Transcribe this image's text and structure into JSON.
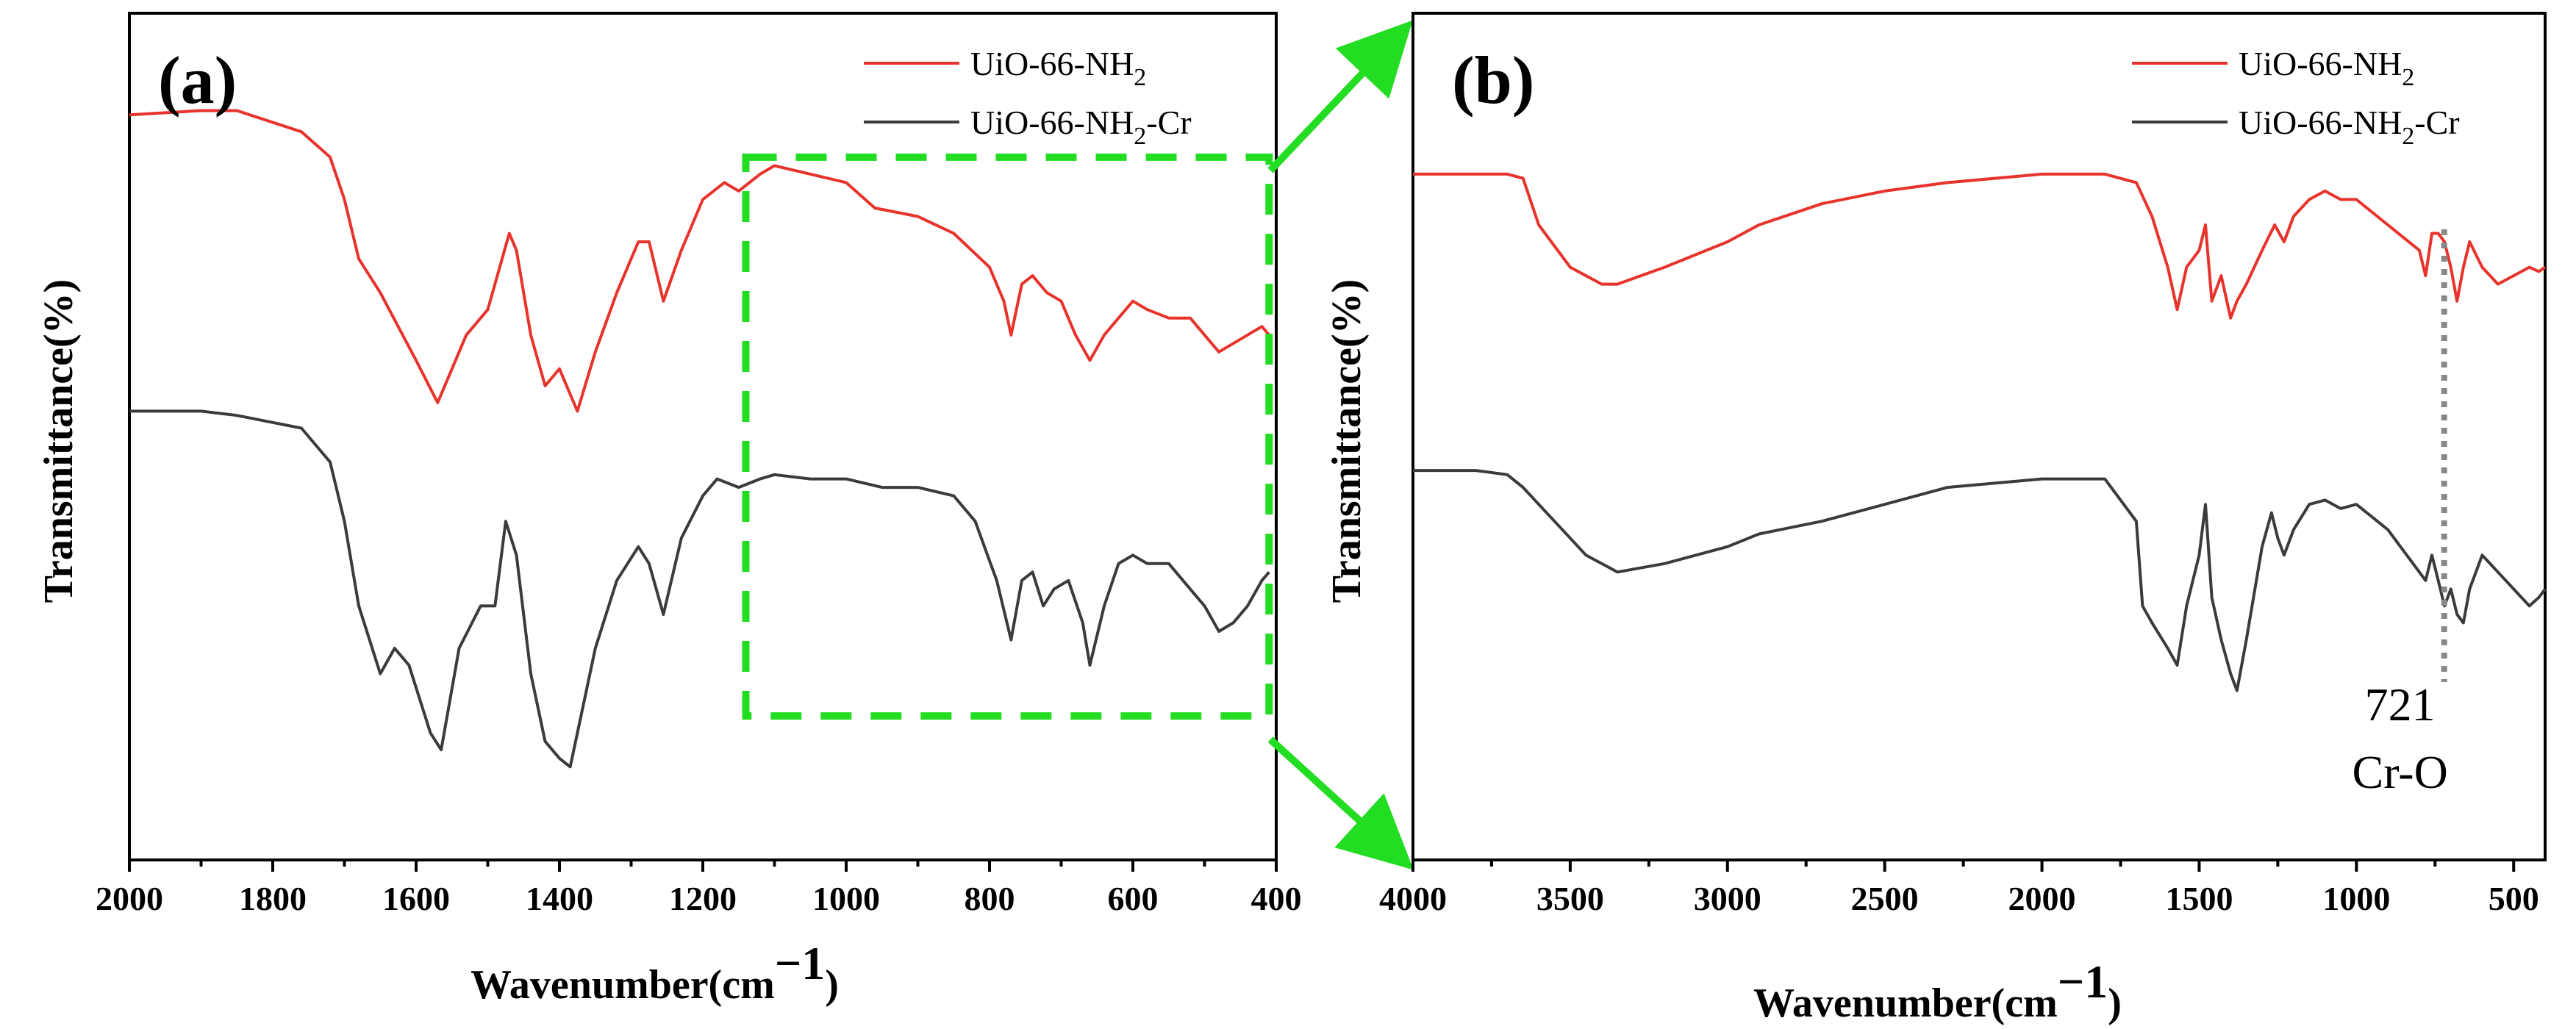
{
  "figure": {
    "zoom_box_color": "#22dd22",
    "panel_a_label": "(a)",
    "panel_b_label": "(b)"
  },
  "chart_data": [
    {
      "panel": "(a)",
      "type": "line",
      "title": "",
      "xlabel": "Wavenumber(cm",
      "xlabel_sup": "−1",
      "xlabel_close": ")",
      "ylabel": "Transmittance(%)",
      "xlim": [
        2000,
        400
      ],
      "ylim": [
        0,
        100
      ],
      "xticks": [
        2000,
        1800,
        1600,
        1400,
        1200,
        1000,
        800,
        600,
        400
      ],
      "grid": false,
      "legend": "top-right",
      "zoom_region": {
        "x_range": [
          1140,
          410
        ],
        "y_range": [
          17,
          83
        ]
      },
      "series": [
        {
          "name": "UiO-66-NH₂",
          "name_main": "UiO-66-NH",
          "name_sub": "2",
          "name_tail": "",
          "color": "#e8332c",
          "x": [
            2000,
            1900,
            1850,
            1760,
            1720,
            1700,
            1680,
            1650,
            1600,
            1570,
            1550,
            1530,
            1500,
            1480,
            1470,
            1460,
            1440,
            1420,
            1400,
            1385,
            1375,
            1350,
            1320,
            1290,
            1275,
            1255,
            1230,
            1200,
            1170,
            1150,
            1120,
            1100,
            1050,
            1000,
            960,
            900,
            850,
            800,
            780,
            770,
            755,
            740,
            720,
            700,
            680,
            660,
            640,
            620,
            600,
            580,
            550,
            520,
            500,
            480,
            460,
            440,
            420,
            410
          ],
          "y": [
            88,
            88.5,
            88.5,
            86,
            83,
            78,
            71,
            67,
            59,
            54,
            58,
            62,
            65,
            71,
            74,
            72,
            62,
            56,
            58,
            55,
            53,
            60,
            67,
            73,
            73,
            66,
            72,
            78,
            80,
            79,
            81,
            82,
            81,
            80,
            77,
            76,
            74,
            70,
            66,
            62,
            68,
            69,
            67,
            66,
            62,
            59,
            62,
            64,
            66,
            65,
            64,
            64,
            62,
            60,
            61,
            62,
            63,
            62
          ]
        },
        {
          "name": "UiO-66-NH₂-Cr",
          "name_main": "UiO-66-NH",
          "name_sub": "2",
          "name_tail": "-Cr",
          "color": "#3b3b3b",
          "x": [
            2000,
            1900,
            1850,
            1760,
            1720,
            1700,
            1680,
            1650,
            1630,
            1610,
            1580,
            1565,
            1540,
            1510,
            1490,
            1475,
            1460,
            1440,
            1420,
            1400,
            1385,
            1370,
            1350,
            1320,
            1290,
            1275,
            1255,
            1230,
            1200,
            1180,
            1150,
            1120,
            1100,
            1050,
            1000,
            950,
            900,
            850,
            820,
            790,
            770,
            755,
            740,
            725,
            710,
            690,
            670,
            660,
            640,
            620,
            600,
            580,
            550,
            520,
            500,
            480,
            460,
            440,
            420,
            410
          ],
          "y": [
            53,
            53,
            52.5,
            51,
            47,
            40,
            30,
            22,
            25,
            23,
            15,
            13,
            25,
            30,
            30,
            40,
            36,
            22,
            14,
            12,
            11,
            17,
            25,
            33,
            37,
            35,
            29,
            38,
            43,
            45,
            44,
            45,
            45.5,
            45,
            45,
            44,
            44,
            43,
            40,
            33,
            26,
            33,
            34,
            30,
            32,
            33,
            28,
            23,
            30,
            35,
            36,
            35,
            35,
            32,
            30,
            27,
            28,
            30,
            33,
            34
          ]
        }
      ]
    },
    {
      "panel": "(b)",
      "type": "line",
      "title": "",
      "xlabel": "Wavenumber(cm",
      "xlabel_sup": "−1",
      "xlabel_close": ")",
      "ylabel": "Transmittance(%)",
      "xlim": [
        4000,
        400
      ],
      "ylim": [
        0,
        100
      ],
      "xticks": [
        4000,
        3500,
        3000,
        2500,
        2000,
        1500,
        1000,
        500
      ],
      "grid": false,
      "legend": "top-right",
      "annotation": {
        "text_line1": "721",
        "text_line2": "Cr-O",
        "x": 721
      },
      "series": [
        {
          "name": "UiO-66-NH₂",
          "name_main": "UiO-66-NH",
          "name_sub": "2",
          "name_tail": "",
          "color": "#e8332c",
          "x": [
            4000,
            3800,
            3700,
            3650,
            3600,
            3500,
            3400,
            3350,
            3200,
            3000,
            2900,
            2700,
            2500,
            2300,
            2000,
            1800,
            1700,
            1650,
            1600,
            1570,
            1540,
            1500,
            1480,
            1460,
            1430,
            1400,
            1380,
            1350,
            1300,
            1260,
            1230,
            1200,
            1150,
            1100,
            1050,
            1000,
            900,
            800,
            780,
            760,
            740,
            720,
            700,
            680,
            660,
            640,
            600,
            550,
            500,
            450,
            420,
            400
          ],
          "y": [
            81,
            81,
            81,
            80.5,
            75,
            70,
            68,
            68,
            70,
            73,
            75,
            77.5,
            79,
            80,
            81,
            81,
            80,
            76,
            70,
            65,
            70,
            72,
            75,
            66,
            69,
            64,
            66,
            68,
            72,
            75,
            73,
            76,
            78,
            79,
            78,
            78,
            75,
            72,
            69,
            74,
            74,
            73,
            70,
            66,
            70,
            73,
            70,
            68,
            69,
            70,
            69.5,
            70
          ]
        },
        {
          "name": "UiO-66-NH₂-Cr",
          "name_main": "UiO-66-NH",
          "name_sub": "2",
          "name_tail": "-Cr",
          "color": "#3b3b3b",
          "x": [
            4000,
            3800,
            3700,
            3650,
            3600,
            3500,
            3450,
            3400,
            3350,
            3200,
            3000,
            2900,
            2700,
            2500,
            2300,
            2000,
            1800,
            1700,
            1680,
            1650,
            1600,
            1570,
            1540,
            1500,
            1480,
            1460,
            1430,
            1400,
            1380,
            1350,
            1300,
            1270,
            1250,
            1230,
            1200,
            1150,
            1100,
            1050,
            1000,
            900,
            800,
            780,
            760,
            740,
            720,
            700,
            680,
            660,
            640,
            600,
            550,
            500,
            450,
            420,
            400
          ],
          "y": [
            46,
            46,
            45.5,
            44,
            42,
            38,
            36,
            35,
            34,
            35,
            37,
            38.5,
            40,
            42,
            44,
            45,
            45,
            40,
            30,
            28,
            25,
            23,
            30,
            36,
            42,
            31,
            26,
            22,
            20,
            26,
            37,
            41,
            38,
            36,
            39,
            42,
            42.5,
            41.5,
            42,
            39,
            34,
            33,
            36,
            33,
            30,
            32,
            29,
            28,
            32,
            36,
            34,
            32,
            30,
            31,
            32
          ]
        }
      ]
    }
  ]
}
